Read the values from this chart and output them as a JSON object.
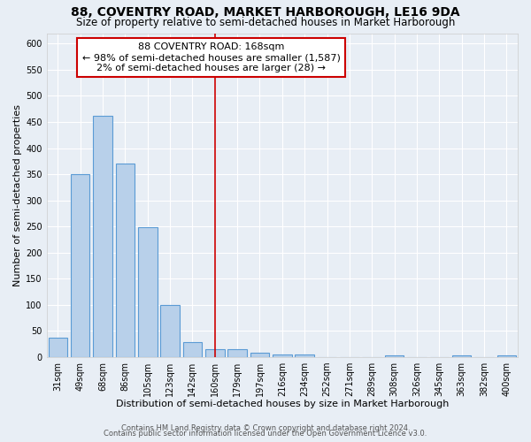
{
  "title": "88, COVENTRY ROAD, MARKET HARBOROUGH, LE16 9DA",
  "subtitle": "Size of property relative to semi-detached houses in Market Harborough",
  "xlabel": "Distribution of semi-detached houses by size in Market Harborough",
  "ylabel": "Number of semi-detached properties",
  "bar_labels": [
    "31sqm",
    "49sqm",
    "68sqm",
    "86sqm",
    "105sqm",
    "123sqm",
    "142sqm",
    "160sqm",
    "179sqm",
    "197sqm",
    "216sqm",
    "234sqm",
    "252sqm",
    "271sqm",
    "289sqm",
    "308sqm",
    "326sqm",
    "345sqm",
    "363sqm",
    "382sqm",
    "400sqm"
  ],
  "bar_values": [
    38,
    350,
    461,
    371,
    248,
    100,
    28,
    15,
    15,
    8,
    5,
    5,
    0,
    0,
    0,
    3,
    0,
    0,
    4,
    0,
    4
  ],
  "annotation_line_index": 7,
  "annotation_box_text_line1": "88 COVENTRY ROAD: 168sqm",
  "annotation_box_text_line2": "← 98% of semi-detached houses are smaller (1,587)",
  "annotation_box_text_line3": "2% of semi-detached houses are larger (28) →",
  "bar_color": "#b8d0ea",
  "bar_edge_color": "#5b9bd5",
  "background_color": "#e8eef5",
  "grid_color": "#ffffff",
  "annotation_box_color": "#ffffff",
  "annotation_box_edge_color": "#cc0000",
  "annotation_line_color": "#cc0000",
  "ylim": [
    0,
    620
  ],
  "yticks": [
    0,
    50,
    100,
    150,
    200,
    250,
    300,
    350,
    400,
    450,
    500,
    550,
    600
  ],
  "title_fontsize": 10,
  "subtitle_fontsize": 8.5,
  "axis_label_fontsize": 8,
  "tick_fontsize": 7,
  "annot_fontsize": 8,
  "footer_fontsize": 6
}
